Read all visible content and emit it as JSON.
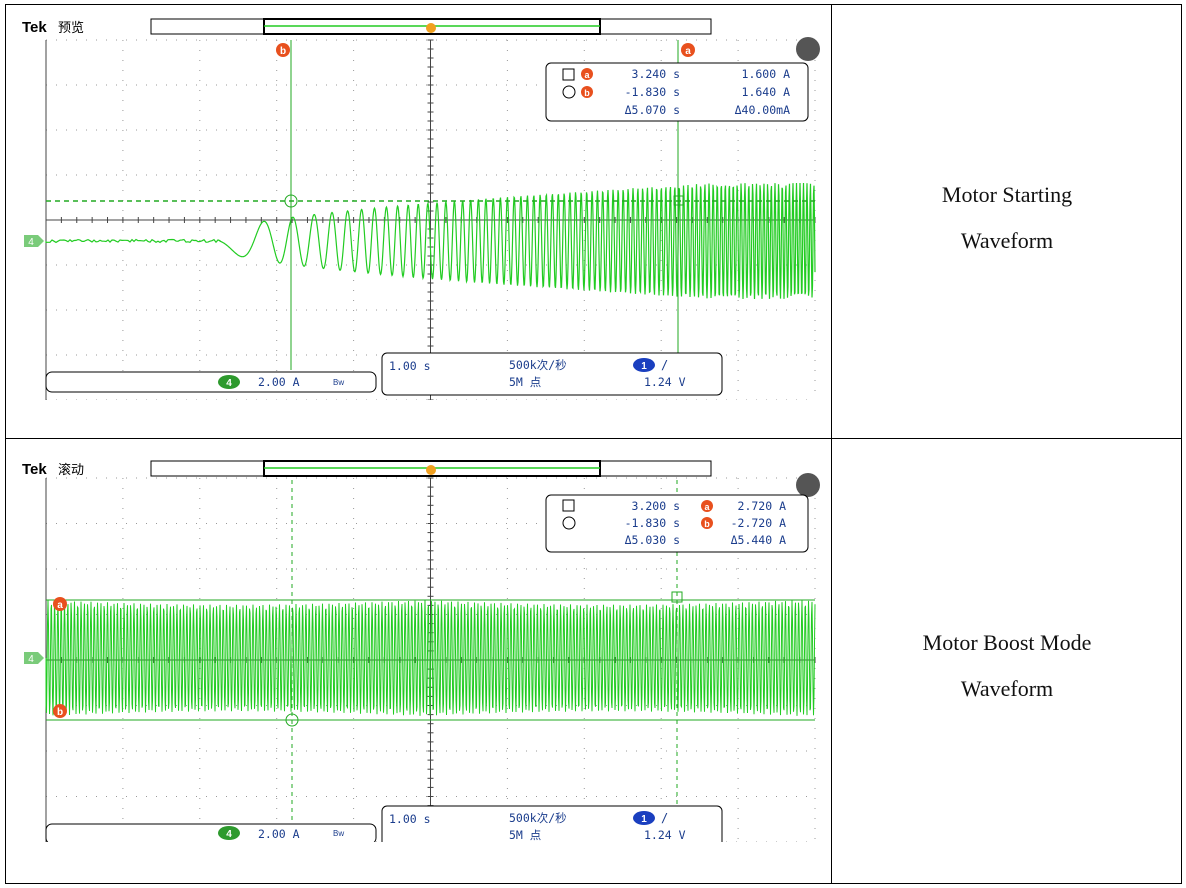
{
  "rows": [
    {
      "caption": [
        "Motor  Starting",
        "Waveform"
      ],
      "scope": {
        "brand": "Tek",
        "mode": "预览",
        "cursor_a_label": "a",
        "cursor_b_label": "b",
        "trigger_marker": "T",
        "channel": "4",
        "readout": [
          {
            "time": "3.240 s",
            "value": "1.600 A"
          },
          {
            "time": "-1.830 s",
            "value": "1.640 A"
          },
          {
            "time": "Δ5.070 s",
            "value": "Δ40.00mA"
          }
        ],
        "ch_scale": "2.00 A",
        "bw": "Bw",
        "timebase": "1.00 s",
        "sample_rate": "500k次/秒",
        "record_length": "5M 点",
        "trigger_channel": "1",
        "trigger_slope": "/",
        "trigger_level": "1.24 V",
        "trace_color": "#22cc22"
      }
    },
    {
      "caption": [
        "Motor  Boost  Mode",
        "Waveform"
      ],
      "scope": {
        "brand": "Tek",
        "mode": "滚动",
        "cursor_a_label": "a",
        "cursor_b_label": "b",
        "trigger_marker": "T",
        "channel": "4",
        "readout": [
          {
            "time": "3.200 s",
            "value": "2.720 A"
          },
          {
            "time": "-1.830 s",
            "value": "-2.720 A"
          },
          {
            "time": "Δ5.030 s",
            "value": "Δ5.440 A"
          }
        ],
        "ch_scale": "2.00 A",
        "bw": "Bw",
        "timebase": "1.00 s",
        "sample_rate": "500k次/秒",
        "record_length": "5M 点",
        "trigger_channel": "1",
        "trigger_slope": "/",
        "trigger_level": "1.24 V",
        "trace_color": "#22cc22"
      }
    }
  ]
}
